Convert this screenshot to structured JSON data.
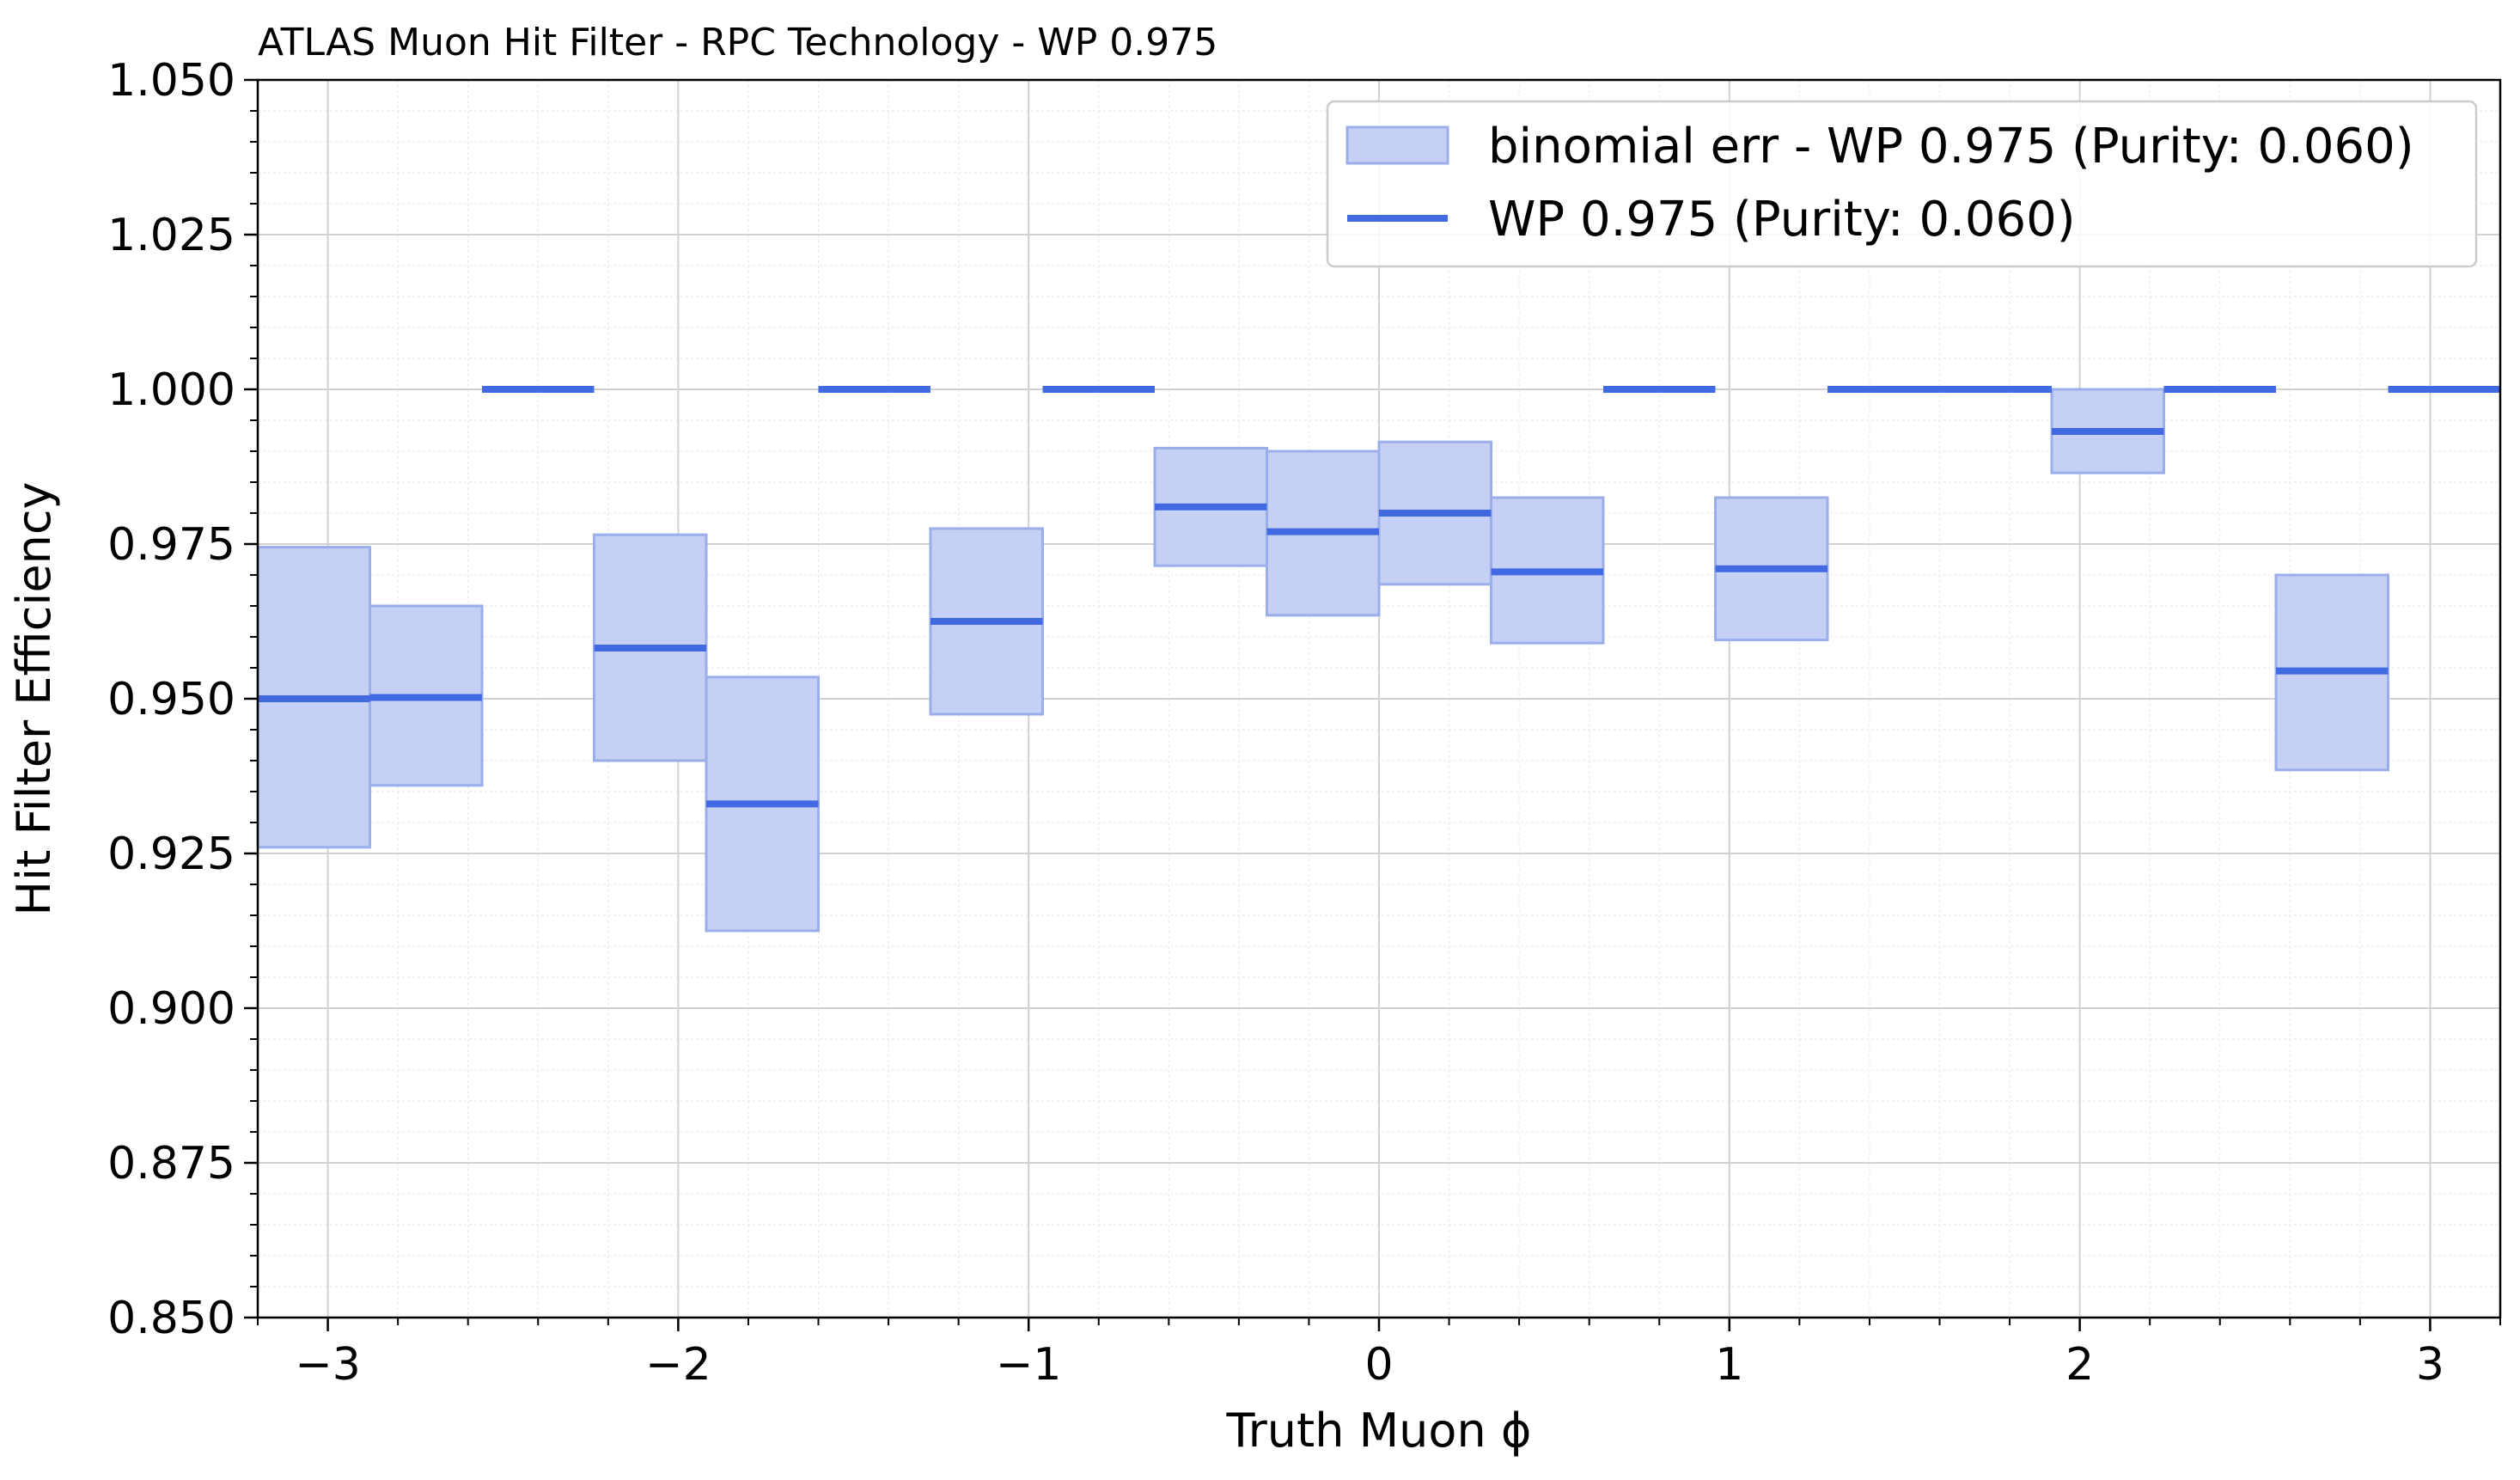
{
  "chart_data": {
    "type": "bar",
    "title": "ATLAS Muon Hit Filter - RPC Technology - WP 0.975",
    "xlabel": "Truth Muon ϕ",
    "ylabel": "Hit Filter Efficiency",
    "xlim": [
      -3.2,
      3.2
    ],
    "ylim": [
      0.85,
      1.05
    ],
    "xticks": [
      -3,
      -2,
      -1,
      0,
      1,
      2,
      3
    ],
    "xtick_labels": [
      "−3",
      "−2",
      "−1",
      "0",
      "1",
      "2",
      "3"
    ],
    "yticks": [
      0.85,
      0.875,
      0.9,
      0.925,
      0.95,
      0.975,
      1.0,
      1.025,
      1.05
    ],
    "ytick_labels": [
      "0.850",
      "0.875",
      "0.900",
      "0.925",
      "0.950",
      "0.975",
      "1.000",
      "1.025",
      "1.050"
    ],
    "grid": true,
    "minor_grid": true,
    "legend_position": "top-right",
    "colors": {
      "line": "#4169e1",
      "band_fill": "#c6d0f4",
      "band_edge": "#9aaee9"
    },
    "bin_edges": [
      -3.2,
      -2.88,
      -2.56,
      -2.24,
      -1.92,
      -1.6,
      -1.28,
      -0.96,
      -0.64,
      -0.32,
      0.0,
      0.32,
      0.64,
      0.96,
      1.28,
      1.6,
      1.92,
      2.24,
      2.56,
      2.88,
      3.2
    ],
    "series": [
      {
        "name": "WP 0.975 (Purity: 0.060)",
        "kind": "step",
        "values": [
          0.95,
          0.9502,
          1.0,
          0.9582,
          0.933,
          1.0,
          0.9625,
          1.0,
          0.981,
          0.977,
          0.98,
          0.9705,
          1.0,
          0.971,
          1.0,
          1.0,
          0.9932,
          1.0,
          0.9545,
          1.0
        ]
      },
      {
        "name": "binomial err - WP 0.975 (Purity: 0.060)",
        "kind": "error_band",
        "lower": [
          0.926,
          0.936,
          1.0,
          0.94,
          0.9125,
          1.0,
          0.9475,
          1.0,
          0.9715,
          0.9635,
          0.9685,
          0.959,
          1.0,
          0.9595,
          1.0,
          1.0,
          0.9865,
          1.0,
          0.9385,
          1.0
        ],
        "upper": [
          0.9745,
          0.965,
          1.0,
          0.9765,
          0.9535,
          1.0,
          0.9775,
          1.0,
          0.9905,
          0.99,
          0.9915,
          0.9825,
          1.0,
          0.9825,
          1.0,
          1.0,
          1.0,
          1.0,
          0.97,
          1.0
        ]
      }
    ]
  }
}
